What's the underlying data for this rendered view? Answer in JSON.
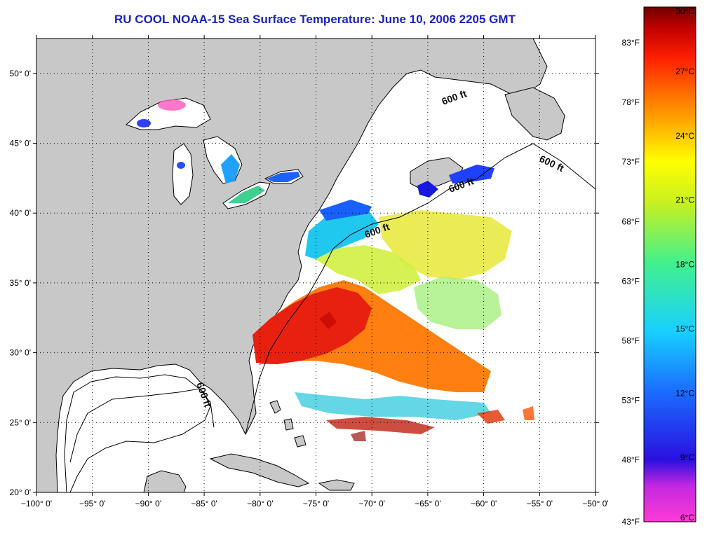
{
  "title": "RU COOL  NOAA-15  Sea Surface Temperature:  June 10, 2006 2205 GMT",
  "map": {
    "lon_ticks": [
      "−100° 0'",
      "−95° 0'",
      "−90° 0'",
      "−85° 0'",
      "−80° 0'",
      "−75° 0'",
      "−70° 0'",
      "−65° 0'",
      "−60° 0'",
      "−55° 0'",
      "−50° 0'"
    ],
    "lat_ticks": [
      "50° 0'",
      "45° 0'",
      "40° 0'",
      "35° 0'",
      "30° 0'",
      "25° 0'",
      "20° 0'"
    ],
    "lon_range": [
      -100,
      -50
    ],
    "lat_range": [
      20,
      52.5
    ],
    "grid": "dotted",
    "land_color": "#c8c8c8",
    "contour_label": "600 ft",
    "contour_labels": [
      "600 ft",
      "600 ft",
      "600 ft",
      "600 ft",
      "600 ft"
    ]
  },
  "colorbar": {
    "celsius_labels": [
      "30°C",
      "27°C",
      "24°C",
      "21°C",
      "18°C",
      "15°C",
      "12°C",
      "9°C",
      "6°C"
    ],
    "fahrenheit_labels": [
      "83°F",
      "78°F",
      "73°F",
      "68°F",
      "63°F",
      "58°F",
      "53°F",
      "48°F",
      "43°F"
    ],
    "range_celsius": [
      6,
      30
    ],
    "gradient": [
      "#ff3ad6",
      "#9b1ee8",
      "#2010e0",
      "#1a5cff",
      "#18c8ff",
      "#30f0a0",
      "#b8f020",
      "#ffff00",
      "#ffb000",
      "#ff7000",
      "#ff2000",
      "#c00000",
      "#7a0000"
    ]
  }
}
